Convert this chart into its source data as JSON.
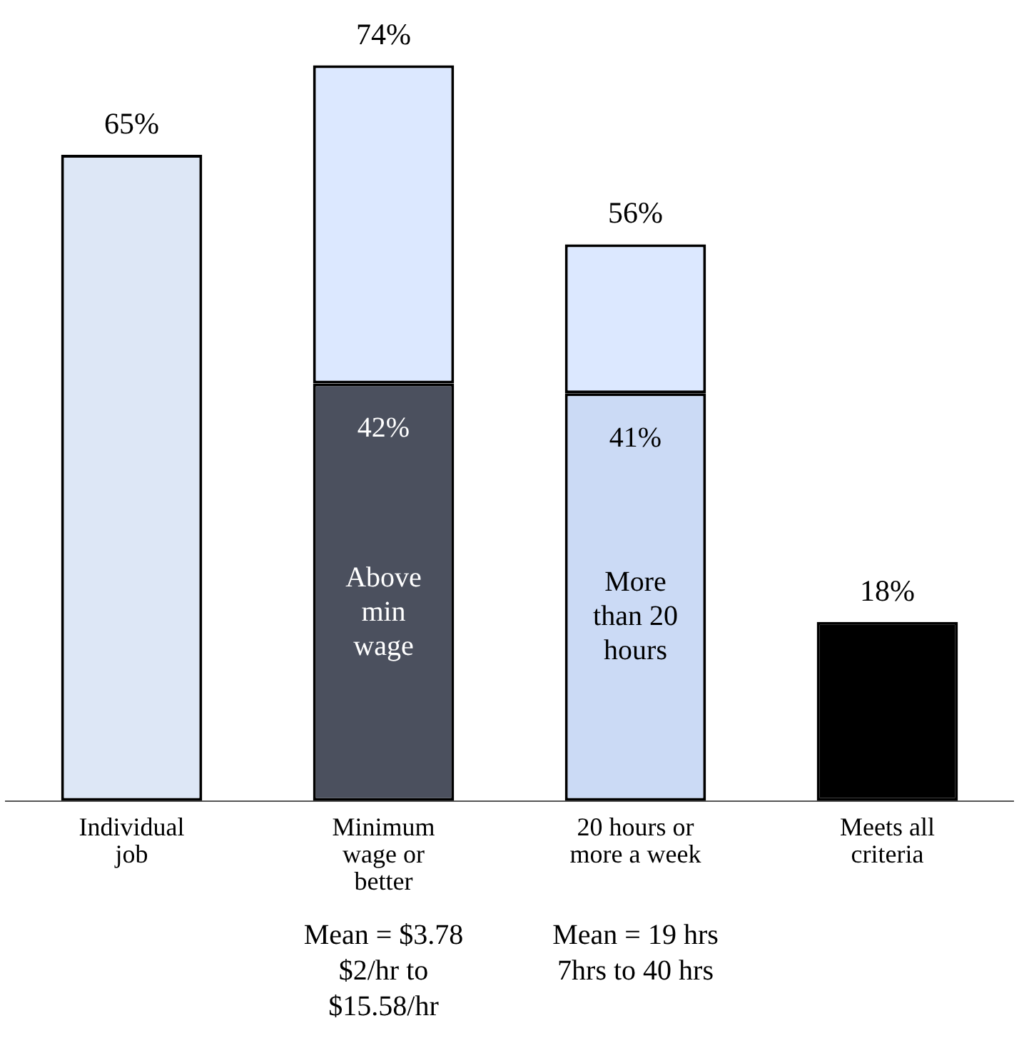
{
  "chart_data": {
    "type": "bar",
    "stacked": true,
    "categories": [
      "Individual job",
      "Minimum wage or better",
      "20 hours or more a week",
      "Meets all criteria"
    ],
    "series": [
      {
        "colors": [
          "#dde7f6",
          "#4b505e",
          "#cbdaf5",
          "#000000"
        ],
        "values": [
          65,
          42,
          41,
          18
        ],
        "value_labels": [
          null,
          "42%",
          "41%",
          null
        ]
      },
      {
        "color": "#dce8ff",
        "values": [
          null,
          32,
          15,
          null
        ]
      }
    ],
    "totals": [
      "65%",
      "74%",
      "56%",
      "18%"
    ],
    "tick_labels": "x",
    "grid": false,
    "legend": false,
    "annotations": [
      "Above min wage",
      "More than 20 hours",
      "Mean = $3.78 $2/hr to $15.58/hr",
      "Mean = 19 hrs 7hrs to 40 hrs"
    ]
  }
}
